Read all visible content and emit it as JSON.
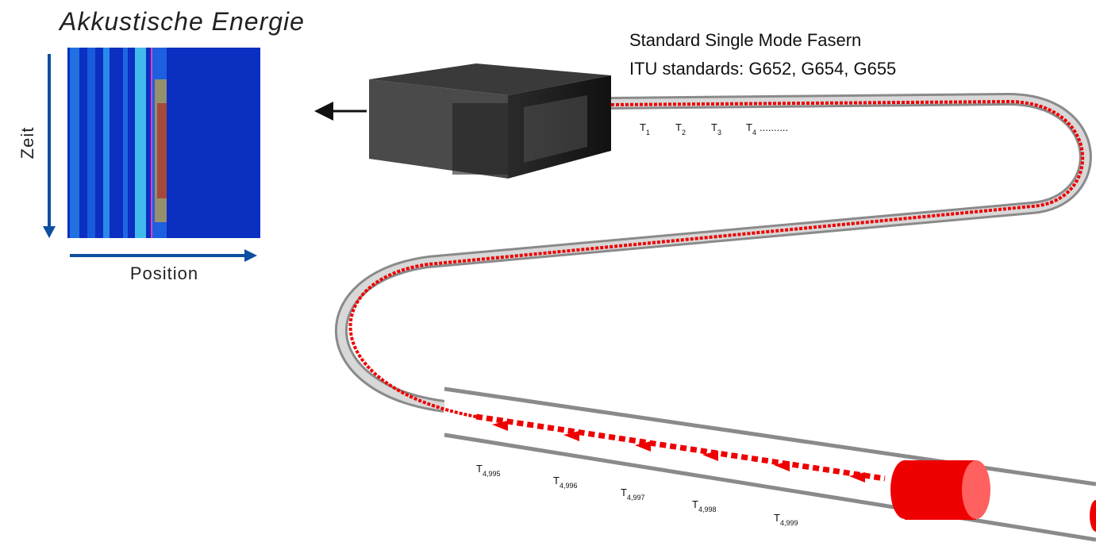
{
  "title": "Akkustische Energie",
  "y_axis_label": "Zeit",
  "x_axis_label": "Position",
  "fiber": {
    "line1": "Standard Single Mode Fasern",
    "line2": "ITU standards: G652, G654, G655"
  },
  "time_labels_top": [
    {
      "base": "T",
      "sub": "1"
    },
    {
      "base": "T",
      "sub": "2"
    },
    {
      "base": "T",
      "sub": "3"
    },
    {
      "base": "T",
      "sub": "4"
    }
  ],
  "ellipsis": "..........",
  "time_labels_bottom": [
    {
      "base": "T",
      "sub": "4,995"
    },
    {
      "base": "T",
      "sub": "4,996"
    },
    {
      "base": "T",
      "sub": "4,997"
    },
    {
      "base": "T",
      "sub": "4,998"
    },
    {
      "base": "T",
      "sub": "4,999"
    }
  ]
}
